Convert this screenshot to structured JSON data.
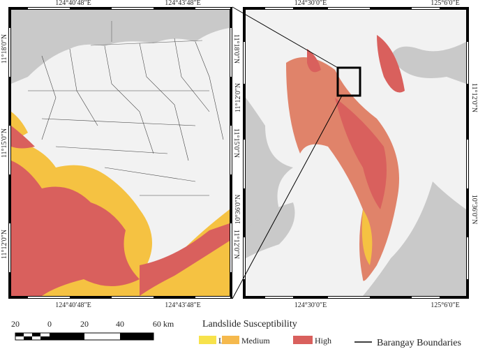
{
  "left_map": {
    "top_labels": [
      "124°40′48″E",
      "124°43′48″E"
    ],
    "bottom_labels": [
      "124°40′48″E",
      "124°43′48″E"
    ],
    "left_labels": [
      "11°18′0″N",
      "11°15′0″N",
      "11°12′0″N"
    ],
    "right_labels": [
      "11°18′0″N",
      "11°15′0″N",
      "11°12′0″N"
    ]
  },
  "right_map": {
    "top_labels": [
      "124°30′0″E",
      "125°6′0″E"
    ],
    "bottom_labels": [
      "124°30′0″E",
      "125°6′0″E"
    ],
    "left_labels": [
      "11°12′0″N",
      "10°36′0″N"
    ],
    "right_labels": [
      "11°12′0″N",
      "10°36′0″N"
    ]
  },
  "scale_bar": {
    "labels": [
      "20",
      "0",
      "20",
      "40",
      "60 km"
    ]
  },
  "legend": {
    "title": "Landslide Susceptibility",
    "items": [
      "Low",
      "Medium",
      "High"
    ],
    "boundary": "Barangay Boundaries"
  }
}
